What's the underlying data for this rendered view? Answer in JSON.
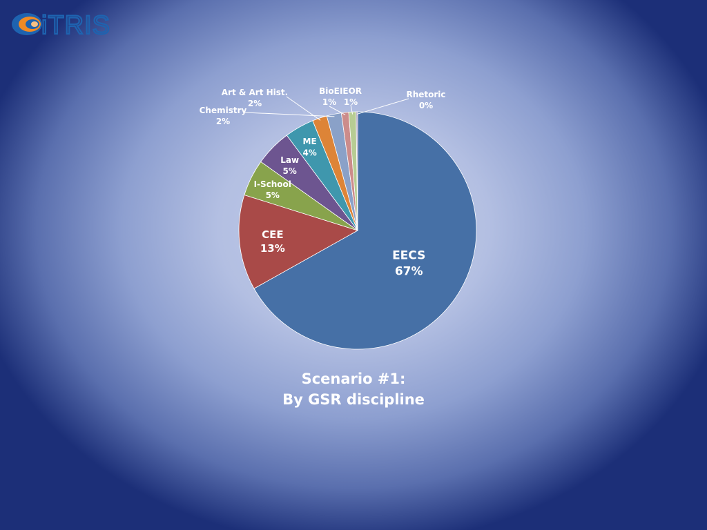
{
  "logo": {
    "text": "iTRIS",
    "accent": "#f08a24",
    "brand": "#1e63b0"
  },
  "caption": {
    "line1": "Scenario #1:",
    "line2": "By GSR discipline"
  },
  "chart_data": {
    "type": "pie",
    "slices": [
      {
        "label": "EECS",
        "value": 67,
        "display": "67%",
        "color": "#4670a6"
      },
      {
        "label": "CEE",
        "value": 13,
        "display": "13%",
        "color": "#a94a48"
      },
      {
        "label": "I-School",
        "value": 5,
        "display": "5%",
        "color": "#88a34c"
      },
      {
        "label": "Law",
        "value": 5,
        "display": "5%",
        "color": "#6d5590"
      },
      {
        "label": "ME",
        "value": 4,
        "display": "4%",
        "color": "#3f97ad"
      },
      {
        "label": "Art & Art Hist.",
        "value": 2,
        "display": "2%",
        "color": "#dd8437"
      },
      {
        "label": "Chemistry",
        "value": 2,
        "display": "2%",
        "color": "#8aa1c8"
      },
      {
        "label": "BioE",
        "value": 1,
        "display": "1%",
        "color": "#cc8c8b"
      },
      {
        "label": "IEOR",
        "value": 1,
        "display": "1%",
        "color": "#b7cc93"
      },
      {
        "label": "Rhetoric",
        "value": 0.2,
        "display": "0%",
        "color": "#a194b9"
      }
    ]
  }
}
